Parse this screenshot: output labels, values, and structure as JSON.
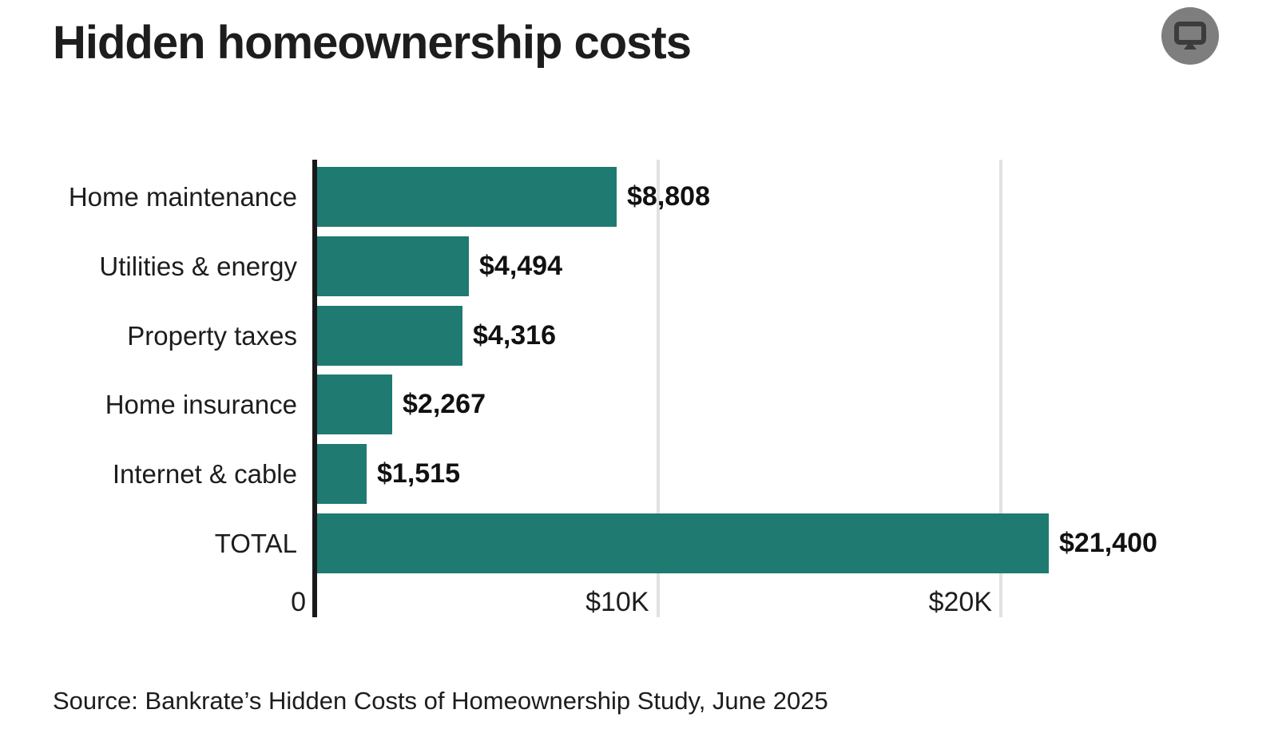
{
  "title": "Hidden homeownership costs",
  "header": {
    "icon": "monitor-icon"
  },
  "chart_data": {
    "type": "bar",
    "orientation": "horizontal",
    "title": "Hidden homeownership costs",
    "categories": [
      "Home maintenance",
      "Utilities & energy",
      "Property taxes",
      "Home insurance",
      "Internet & cable",
      "TOTAL"
    ],
    "values": [
      8808,
      4494,
      4316,
      2267,
      1515,
      21400
    ],
    "value_labels": [
      "$8,808",
      "$4,494",
      "$4,316",
      "$2,267",
      "$1,515",
      "$21,400"
    ],
    "x_ticks": [
      {
        "value": 0,
        "label": "0"
      },
      {
        "value": 10000,
        "label": "$10K"
      },
      {
        "value": 20000,
        "label": "$20K"
      }
    ],
    "xlim": [
      0,
      26700
    ],
    "grid": true,
    "legend": false,
    "bar_color": "#1f7a71",
    "axis_color": "#191919",
    "gridline_color": "#e2e2e2"
  },
  "source": "Source: Bankrate’s Hidden Costs of Homeownership Study, June 2025",
  "colors": {
    "background": "#ffffff",
    "text": "#1d1d1d",
    "bar": "#1f7a71",
    "icon_circle": "#7e7e7e",
    "icon_glyph": "#3c3c3c"
  }
}
